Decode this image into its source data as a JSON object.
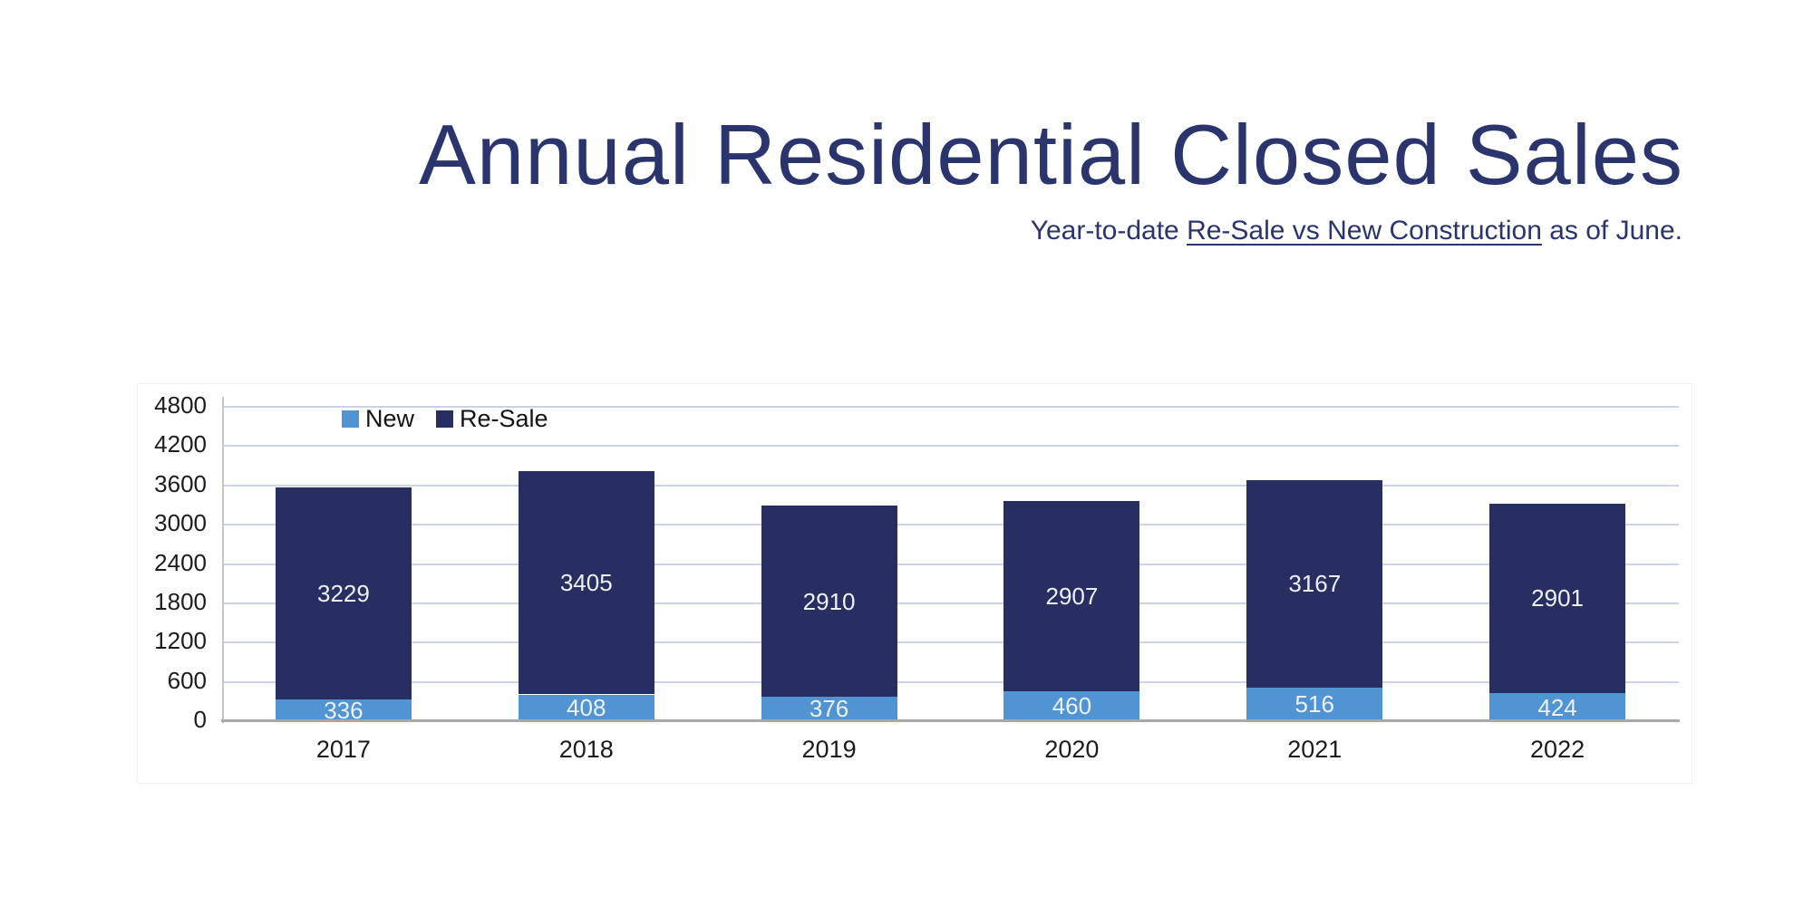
{
  "colors": {
    "background": "#ffffff",
    "title_text": "#2a356e",
    "gridline": "#cdd3e6",
    "x_axis_line": "#a8a8a8",
    "y_axis_line": "#c6c6c6",
    "tick_label": "#1c1c1c",
    "bar_value_label": "#eef1f7",
    "new_series": "#5094d4",
    "resale_series": "#272f62"
  },
  "chart_data": {
    "type": "bar",
    "stacked": true,
    "title": "Annual Residential Closed Sales",
    "subtitle": "Year-to-date Re-Sale vs New Construction as of June.",
    "subtitle_parts": {
      "prefix": "Year-to-date ",
      "underlined": "Re-Sale vs New Construction",
      "suffix": " as of June."
    },
    "categories": [
      "2017",
      "2018",
      "2019",
      "2020",
      "2021",
      "2022"
    ],
    "series": [
      {
        "name": "New",
        "color": "#5094d4",
        "values": [
          336,
          408,
          376,
          460,
          516,
          424
        ]
      },
      {
        "name": "Re-Sale",
        "color": "#272f62",
        "values": [
          3229,
          3405,
          2910,
          2907,
          3167,
          2901
        ]
      }
    ],
    "totals": [
      3565,
      3813,
      3286,
      3367,
      3683,
      3325
    ],
    "xlabel": "",
    "ylabel": "",
    "ylim": [
      0,
      4800
    ],
    "ytick_step": 600,
    "yticks": [
      0,
      600,
      1200,
      1800,
      2400,
      3000,
      3600,
      4200,
      4800
    ],
    "grid": true,
    "value_labels": true,
    "legend_position": "top-left-inside"
  }
}
